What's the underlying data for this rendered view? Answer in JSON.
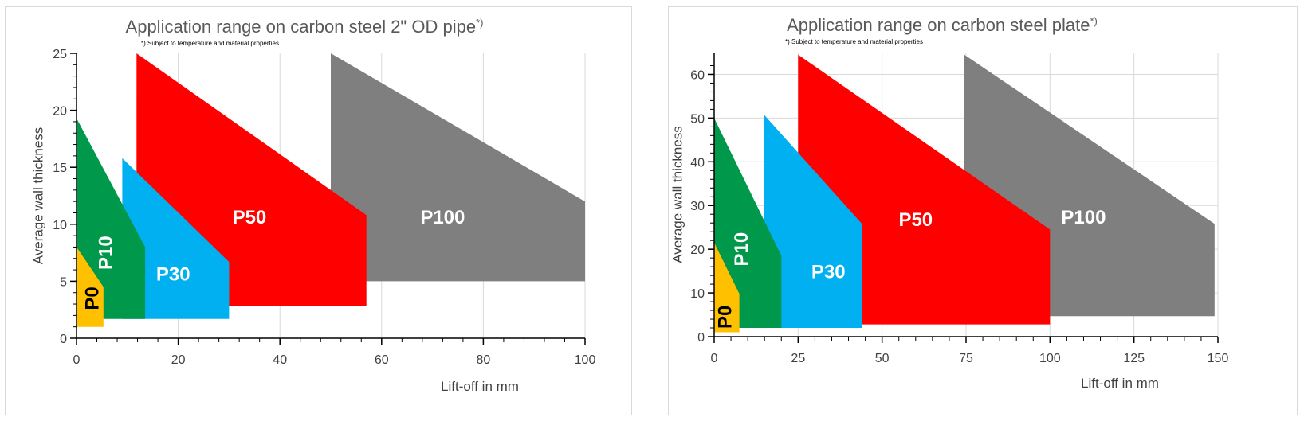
{
  "chart_data": [
    {
      "type": "area",
      "title": "Application range on carbon steel 2\" OD pipe",
      "title_mark": "*)",
      "note": "*) Subject to temperature and material properties",
      "xlabel": "Lift-off in mm",
      "ylabel": "Average wall thickness",
      "xlim": [
        0,
        100
      ],
      "ylim": [
        0,
        25
      ],
      "xticks": [
        0,
        20,
        40,
        60,
        80,
        100
      ],
      "yticks": [
        0,
        5,
        10,
        15,
        20,
        25
      ],
      "grid": "vertical",
      "regions": [
        {
          "name": "P100",
          "color": "#7f7f7f",
          "label_at": [
            72,
            10.5
          ],
          "label_color": "#ffffff",
          "label_rotate": false,
          "polygon": [
            [
              50,
              25
            ],
            [
              100,
              12
            ],
            [
              100,
              5
            ],
            [
              50,
              5
            ]
          ]
        },
        {
          "name": "P50",
          "color": "#ff0000",
          "label_at": [
            34,
            10.5
          ],
          "label_color": "#ffffff",
          "label_rotate": false,
          "polygon": [
            [
              11.8,
              25
            ],
            [
              57,
              10.8
            ],
            [
              57,
              2.8
            ],
            [
              11.8,
              2.8
            ]
          ]
        },
        {
          "name": "P30",
          "color": "#00b0f0",
          "label_at": [
            19,
            5.5
          ],
          "label_color": "#ffffff",
          "label_rotate": false,
          "polygon": [
            [
              9,
              15.8
            ],
            [
              30,
              6.7
            ],
            [
              30,
              1.7
            ],
            [
              9,
              1.7
            ]
          ]
        },
        {
          "name": "P10",
          "color": "#00984a",
          "label_at": [
            6,
            7.5
          ],
          "label_color": "#ffffff",
          "label_rotate": true,
          "polygon": [
            [
              0,
              19.3
            ],
            [
              13.5,
              8
            ],
            [
              13.5,
              1.7
            ],
            [
              0,
              1.7
            ]
          ]
        },
        {
          "name": "P0",
          "color": "#ffc000",
          "label_at": [
            3.3,
            3.5
          ],
          "label_color": "#000000",
          "label_rotate": true,
          "polygon": [
            [
              0,
              8
            ],
            [
              5.3,
              4.5
            ],
            [
              5.3,
              1
            ],
            [
              0,
              1
            ]
          ]
        }
      ]
    },
    {
      "type": "area",
      "title": "Application range on carbon steel plate",
      "title_mark": "*)",
      "note": "*) Subject to temperature and material properties",
      "xlabel": "Lift-off in mm",
      "ylabel": "Average wall thickness",
      "xlim": [
        0,
        150
      ],
      "ylim": [
        0,
        65
      ],
      "xticks": [
        0,
        25,
        50,
        75,
        100,
        125,
        150
      ],
      "yticks": [
        0,
        10,
        20,
        30,
        40,
        50,
        60
      ],
      "grid": "both",
      "regions": [
        {
          "name": "P100",
          "color": "#7f7f7f",
          "label_at": [
            110,
            27
          ],
          "label_color": "#ffffff",
          "label_rotate": false,
          "polygon": [
            [
              74.5,
              64.5
            ],
            [
              149,
              25.8
            ],
            [
              149,
              4.7
            ],
            [
              74.5,
              4.7
            ]
          ]
        },
        {
          "name": "P50",
          "color": "#ff0000",
          "label_at": [
            60,
            26.5
          ],
          "label_color": "#ffffff",
          "label_rotate": false,
          "polygon": [
            [
              25,
              64.5
            ],
            [
              100,
              24.5
            ],
            [
              100,
              2.8
            ],
            [
              25,
              2.8
            ]
          ]
        },
        {
          "name": "P30",
          "color": "#00b0f0",
          "label_at": [
            34,
            14.5
          ],
          "label_color": "#ffffff",
          "label_rotate": false,
          "polygon": [
            [
              14.8,
              50.8
            ],
            [
              44,
              25.8
            ],
            [
              44,
              2
            ],
            [
              14.8,
              2
            ]
          ]
        },
        {
          "name": "P10",
          "color": "#00984a",
          "label_at": [
            8.5,
            20
          ],
          "label_color": "#ffffff",
          "label_rotate": true,
          "polygon": [
            [
              0,
              50
            ],
            [
              20,
              18.5
            ],
            [
              20,
              2
            ],
            [
              0,
              2
            ]
          ]
        },
        {
          "name": "P0",
          "color": "#ffc000",
          "label_at": [
            3.6,
            4.5
          ],
          "label_color": "#000000",
          "label_rotate": true,
          "polygon": [
            [
              0,
              21.5
            ],
            [
              7.5,
              9.8
            ],
            [
              7.5,
              1
            ],
            [
              0,
              1
            ]
          ]
        }
      ]
    }
  ]
}
